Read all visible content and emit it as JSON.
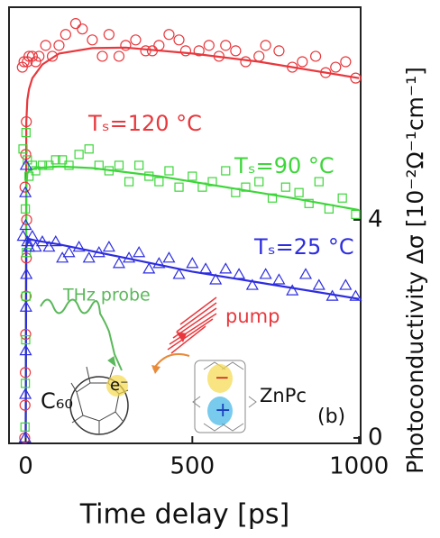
{
  "chart_data": {
    "type": "scatter",
    "x_label": "Time delay [ps]",
    "y_label": "Photoconductivity Δσ [10⁻²Ω⁻¹cm⁻¹]",
    "xlim": [
      -50,
      1005
    ],
    "ylim": [
      -0.1,
      7.9
    ],
    "xticks": [
      0,
      500,
      1000
    ],
    "yticks": [
      0,
      4
    ],
    "series": [
      {
        "name": "Tₛ=120 °C",
        "color": "#e8383d",
        "marker": "circle",
        "x": [
          -3,
          -2,
          -1,
          0,
          1,
          2,
          3,
          -2,
          0,
          2,
          -10,
          -5,
          5,
          10,
          20,
          30,
          40,
          60,
          80,
          100,
          120,
          150,
          170,
          200,
          230,
          250,
          280,
          300,
          330,
          360,
          380,
          400,
          430,
          460,
          480,
          520,
          550,
          580,
          600,
          630,
          660,
          700,
          720,
          760,
          800,
          830,
          870,
          900,
          930,
          960,
          990
        ],
        "values": [
          0,
          0.6,
          1.2,
          1.9,
          2.6,
          3.3,
          4.0,
          4.6,
          5.2,
          5.8,
          6.8,
          6.9,
          6.9,
          7.0,
          7.0,
          6.9,
          7.0,
          7.2,
          7.0,
          7.2,
          7.4,
          7.6,
          7.5,
          7.3,
          7.0,
          7.4,
          7.0,
          7.2,
          7.3,
          7.1,
          7.1,
          7.2,
          7.4,
          7.3,
          7.1,
          7.1,
          7.2,
          7.0,
          7.2,
          7.1,
          6.9,
          7.0,
          7.2,
          7.1,
          6.8,
          6.9,
          7.0,
          6.7,
          6.8,
          6.9,
          6.6
        ]
      },
      {
        "name": "Tₛ=90 °C",
        "color": "#3dd63a",
        "marker": "square",
        "x": [
          -2,
          -1,
          0,
          1,
          2,
          -1,
          1,
          -8,
          5,
          10,
          20,
          30,
          50,
          70,
          90,
          110,
          130,
          160,
          190,
          220,
          250,
          280,
          310,
          340,
          370,
          400,
          430,
          460,
          500,
          530,
          560,
          600,
          630,
          660,
          700,
          740,
          780,
          820,
          850,
          880,
          910,
          950,
          990
        ],
        "values": [
          0.2,
          1.0,
          1.8,
          2.6,
          3.4,
          4.2,
          5.6,
          5.3,
          5.1,
          4.8,
          5.0,
          4.9,
          5.0,
          5.0,
          5.1,
          5.1,
          5.0,
          5.2,
          5.3,
          5.0,
          4.9,
          5.0,
          4.7,
          5.0,
          4.8,
          4.7,
          4.9,
          4.6,
          4.8,
          4.6,
          4.7,
          4.9,
          4.5,
          4.6,
          4.7,
          4.4,
          4.6,
          4.5,
          4.3,
          4.7,
          4.2,
          4.4,
          4.1
        ]
      },
      {
        "name": "Tₛ=25 °C",
        "color": "#2d2de0",
        "marker": "triangle",
        "x": [
          -2,
          -1,
          0,
          1,
          2,
          0,
          -1,
          1,
          -8,
          5,
          10,
          20,
          30,
          50,
          70,
          90,
          110,
          130,
          160,
          190,
          220,
          250,
          280,
          310,
          340,
          370,
          400,
          430,
          460,
          500,
          540,
          570,
          600,
          640,
          680,
          720,
          760,
          800,
          840,
          880,
          920,
          960,
          990
        ],
        "values": [
          0,
          0.8,
          1.6,
          2.4,
          3.0,
          3.9,
          4.5,
          5.0,
          3.7,
          3.6,
          3.5,
          3.7,
          3.5,
          3.6,
          3.5,
          3.6,
          3.3,
          3.4,
          3.5,
          3.3,
          3.4,
          3.5,
          3.2,
          3.3,
          3.4,
          3.1,
          3.2,
          3.3,
          3.0,
          3.2,
          3.1,
          2.9,
          3.1,
          3.0,
          2.8,
          3.0,
          2.9,
          2.7,
          3.0,
          2.8,
          2.6,
          2.8,
          2.6
        ]
      }
    ],
    "fits": [
      {
        "color": "#e8383d",
        "x": [
          0,
          2,
          5,
          10,
          20,
          50,
          100,
          200,
          300,
          500,
          700,
          1000
        ],
        "values": [
          0,
          5.8,
          6.2,
          6.4,
          6.6,
          6.85,
          7.05,
          7.15,
          7.16,
          7.05,
          6.9,
          6.6
        ]
      },
      {
        "color": "#3dd63a",
        "x": [
          0,
          2,
          5,
          10,
          30,
          100,
          200,
          400,
          600,
          800,
          1000
        ],
        "values": [
          0,
          4.6,
          4.85,
          4.9,
          4.95,
          4.98,
          4.95,
          4.8,
          4.6,
          4.4,
          4.18
        ]
      },
      {
        "color": "#2d2de0",
        "x": [
          0,
          2,
          5,
          10,
          30,
          100,
          300,
          500,
          700,
          1000
        ],
        "values": [
          0,
          3.5,
          3.6,
          3.65,
          3.62,
          3.55,
          3.3,
          3.05,
          2.85,
          2.55
        ]
      }
    ],
    "annotations": {
      "probe": "THz probe",
      "pump": "pump",
      "c60": "C₆₀",
      "electron": "e⁻",
      "znpc": "ZnPc",
      "panel": "(b)",
      "minus": "−",
      "plus": "+"
    }
  }
}
